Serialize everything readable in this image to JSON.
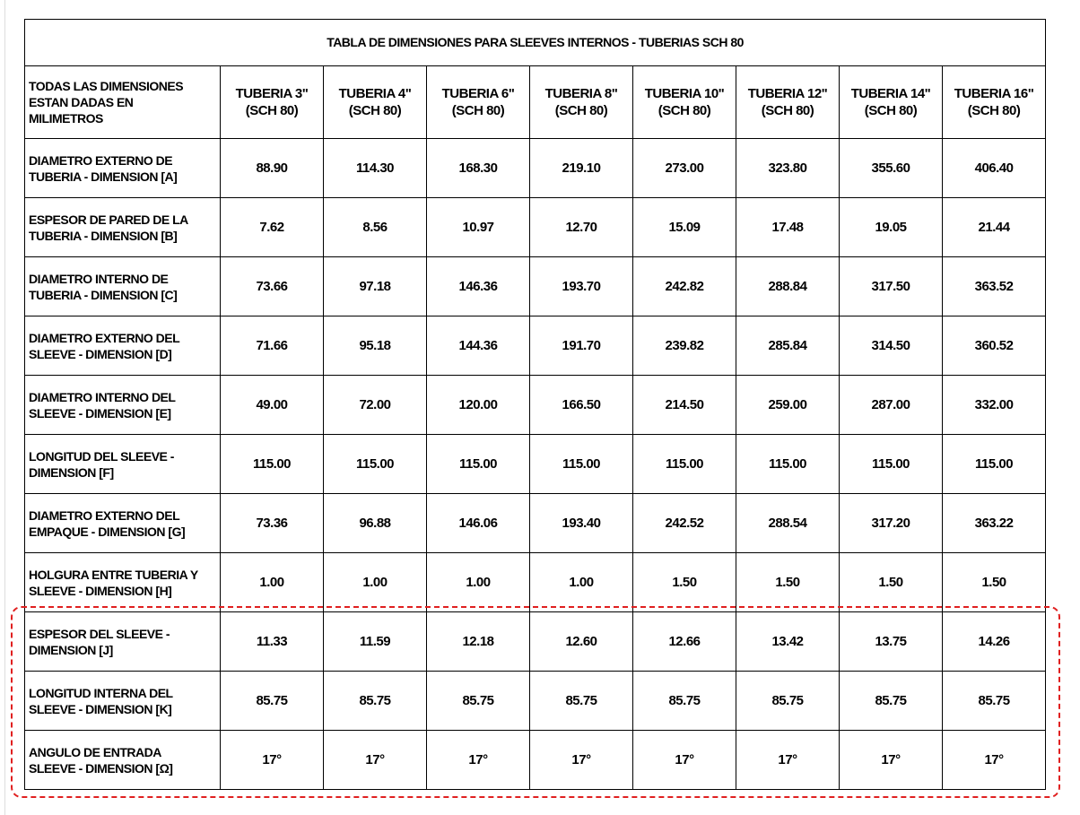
{
  "table": {
    "title": "TABLA DE DIMENSIONES PARA SLEEVES INTERNOS - TUBERIAS SCH 80",
    "header_label": "TODAS LAS DIMENSIONES\nESTAN DADAS EN\nMILIMETROS",
    "columns": [
      "TUBERIA 3\"\n(SCH 80)",
      "TUBERIA 4\"\n(SCH 80)",
      "TUBERIA 6\"\n(SCH 80)",
      "TUBERIA 8\"\n(SCH 80)",
      "TUBERIA 10\"\n(SCH 80)",
      "TUBERIA 12\"\n(SCH 80)",
      "TUBERIA 14\"\n(SCH 80)",
      "TUBERIA 16\"\n(SCH 80)"
    ],
    "rows": [
      {
        "label": "DIAMETRO EXTERNO DE\nTUBERIA - DIMENSION [A]",
        "values": [
          "88.90",
          "114.30",
          "168.30",
          "219.10",
          "273.00",
          "323.80",
          "355.60",
          "406.40"
        ]
      },
      {
        "label": "ESPESOR DE PARED DE LA\nTUBERIA - DIMENSION [B]",
        "values": [
          "7.62",
          "8.56",
          "10.97",
          "12.70",
          "15.09",
          "17.48",
          "19.05",
          "21.44"
        ]
      },
      {
        "label": "DIAMETRO INTERNO DE\nTUBERIA - DIMENSION [C]",
        "values": [
          "73.66",
          "97.18",
          "146.36",
          "193.70",
          "242.82",
          "288.84",
          "317.50",
          "363.52"
        ]
      },
      {
        "label": "DIAMETRO EXTERNO DEL\nSLEEVE - DIMENSION [D]",
        "values": [
          "71.66",
          "95.18",
          "144.36",
          "191.70",
          "239.82",
          "285.84",
          "314.50",
          "360.52"
        ]
      },
      {
        "label": "DIAMETRO INTERNO DEL\nSLEEVE - DIMENSION [E]",
        "values": [
          "49.00",
          "72.00",
          "120.00",
          "166.50",
          "214.50",
          "259.00",
          "287.00",
          "332.00"
        ]
      },
      {
        "label": "LONGITUD DEL SLEEVE -\nDIMENSION [F]",
        "values": [
          "115.00",
          "115.00",
          "115.00",
          "115.00",
          "115.00",
          "115.00",
          "115.00",
          "115.00"
        ]
      },
      {
        "label": "DIAMETRO EXTERNO DEL\nEMPAQUE - DIMENSION [G]",
        "values": [
          "73.36",
          "96.88",
          "146.06",
          "193.40",
          "242.52",
          "288.54",
          "317.20",
          "363.22"
        ]
      },
      {
        "label": "HOLGURA ENTRE TUBERIA Y\nSLEEVE - DIMENSION [H]",
        "values": [
          "1.00",
          "1.00",
          "1.00",
          "1.00",
          "1.50",
          "1.50",
          "1.50",
          "1.50"
        ]
      },
      {
        "label": "ESPESOR DEL SLEEVE -\nDIMENSION [J]",
        "values": [
          "11.33",
          "11.59",
          "12.18",
          "12.60",
          "12.66",
          "13.42",
          "13.75",
          "14.26"
        ]
      },
      {
        "label": "LONGITUD INTERNA DEL\nSLEEVE - DIMENSION [K]",
        "values": [
          "85.75",
          "85.75",
          "85.75",
          "85.75",
          "85.75",
          "85.75",
          "85.75",
          "85.75"
        ]
      },
      {
        "label": "ANGULO DE ENTRADA\nSLEEVE - DIMENSION [Ω]",
        "values": [
          "17°",
          "17°",
          "17°",
          "17°",
          "17°",
          "17°",
          "17°",
          "17°"
        ]
      }
    ]
  }
}
